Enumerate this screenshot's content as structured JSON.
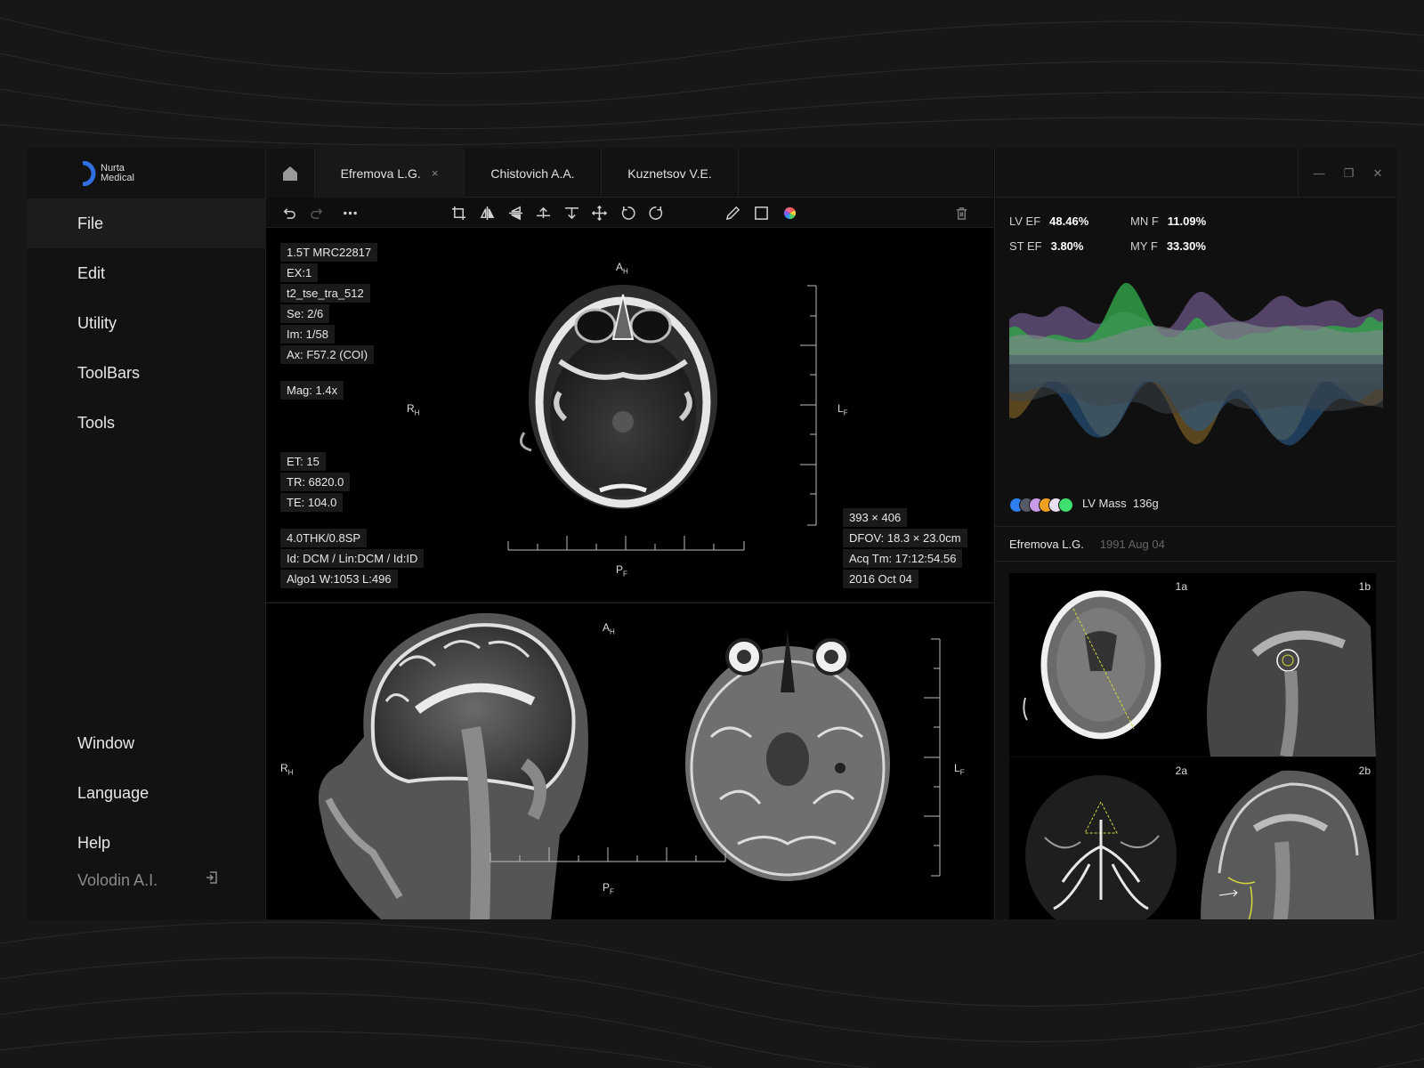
{
  "app": {
    "logo_line1": "Nurta",
    "logo_line2": "Medical",
    "accent": "#2f6fe0"
  },
  "menu": {
    "items": [
      "File",
      "Edit",
      "Utility",
      "ToolBars",
      "Tools"
    ],
    "bottom_items": [
      "Window",
      "Language",
      "Help"
    ],
    "active": "File"
  },
  "user": {
    "name": "Volodin A.I."
  },
  "tabs": [
    {
      "label": "Efremova L.G.",
      "close": "×"
    },
    {
      "label": "Chistovich A.A."
    },
    {
      "label": "Kuznetsov V.E."
    }
  ],
  "icons": {
    "home": "home-icon",
    "toolbar": [
      "undo-icon",
      "redo-icon",
      "more-icon",
      "crop-icon",
      "flip-horizontal-icon",
      "flip-vertical-icon",
      "align-top-icon",
      "align-bottom-icon",
      "move-icon",
      "rotate-left-icon",
      "rotate-right-icon",
      "pencil-icon",
      "rectangle-icon",
      "color-wheel-icon",
      "trash-icon"
    ]
  },
  "viewer_top": {
    "info_left_top": [
      "1.5T MRC22817",
      "EX:1",
      "t2_tse_tra_512",
      "Se: 2/6",
      "Im: 1/58",
      "Ax: F57.2 (COI)"
    ],
    "mag": "Mag: 1.4x",
    "info_left_mid": [
      "ET: 15",
      "TR: 6820.0",
      "TE: 104.0"
    ],
    "info_left_bottom": [
      "4.0THK/0.8SP",
      "Id: DCM / Lin:DCM / Id:ID",
      "Algo1 W:1053 L:496"
    ],
    "info_right_bottom": [
      "393 × 406",
      "DFOV: 18.3 × 23.0cm",
      "Acq Tm: 17:12:54.56",
      "2016 Oct 04"
    ],
    "orient": {
      "top": "A",
      "top_sub": "H",
      "left": "R",
      "left_sub": "H",
      "right": "L",
      "right_sub": "F",
      "bottom": "P",
      "bottom_sub": "F"
    }
  },
  "viewer_bottom": {
    "orient": {
      "top": "A",
      "top_sub": "H",
      "left": "R",
      "left_sub": "H",
      "right": "L",
      "right_sub": "F",
      "bottom": "P",
      "bottom_sub": "F"
    }
  },
  "metrics": [
    {
      "label": "LV EF",
      "value": "48.46%"
    },
    {
      "label": "MN F",
      "value": "11.09%"
    },
    {
      "label": "ST EF",
      "value": "3.80%"
    },
    {
      "label": "MY F",
      "value": "33.30%"
    }
  ],
  "legend": {
    "colors": [
      "#2f7ff0",
      "#555a66",
      "#c79be8",
      "#f0a020",
      "#e8e0f0",
      "#3ee070"
    ],
    "label": "LV Mass",
    "value": "136g"
  },
  "patient": {
    "name": "Efremova L.G.",
    "date": "1991 Aug 04"
  },
  "thumbnails": [
    "1a",
    "1b",
    "2a",
    "2b"
  ]
}
